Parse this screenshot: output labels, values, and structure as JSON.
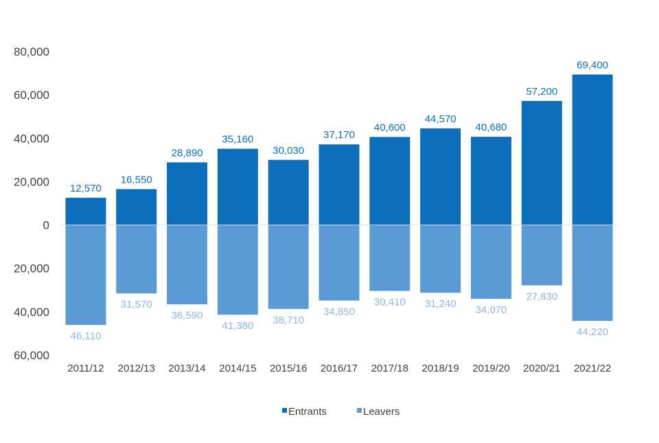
{
  "chart_data": {
    "type": "bar",
    "title": "",
    "xlabel": "",
    "ylabel": "",
    "categories": [
      "2011/12",
      "2012/13",
      "2013/14",
      "2014/15",
      "2015/16",
      "2016/17",
      "2017/18",
      "2018/19",
      "2019/20",
      "2020/21",
      "2021/22"
    ],
    "series": [
      {
        "name": "Entrants",
        "direction": "up",
        "color": "#0b6fbd",
        "label_color": "#0b6fbd",
        "values": [
          12570,
          16550,
          28890,
          35160,
          30030,
          37170,
          40600,
          44570,
          40680,
          57200,
          69400
        ],
        "labels": [
          "12,570",
          "16,550",
          "28,890",
          "35,160",
          "30,030",
          "37,170",
          "40,600",
          "44,570",
          "40,680",
          "57,200",
          "69,400"
        ]
      },
      {
        "name": "Leavers",
        "direction": "down",
        "color": "#5b9bd5",
        "label_color": "#8db5e0",
        "values": [
          46110,
          31570,
          36590,
          41380,
          38710,
          34850,
          30410,
          31240,
          34070,
          27830,
          44220
        ],
        "labels": [
          "46,110",
          "31,570",
          "36,590",
          "41,380",
          "38,710",
          "34,850",
          "30,410",
          "31,240",
          "34,070",
          "27,830",
          "44,220"
        ]
      }
    ],
    "ylim": [
      -60000,
      80000
    ],
    "y_ticks": [
      80000,
      60000,
      40000,
      20000,
      0,
      -20000,
      -40000,
      -60000
    ],
    "y_tick_labels": [
      "80,000",
      "60,000",
      "40,000",
      "20,000",
      "0",
      "20,000",
      "40,000",
      "60,000"
    ],
    "zero_line_color": "#d9d9d9",
    "grid": false,
    "legend_position": "bottom",
    "legend": [
      "Entrants",
      "Leavers"
    ]
  }
}
